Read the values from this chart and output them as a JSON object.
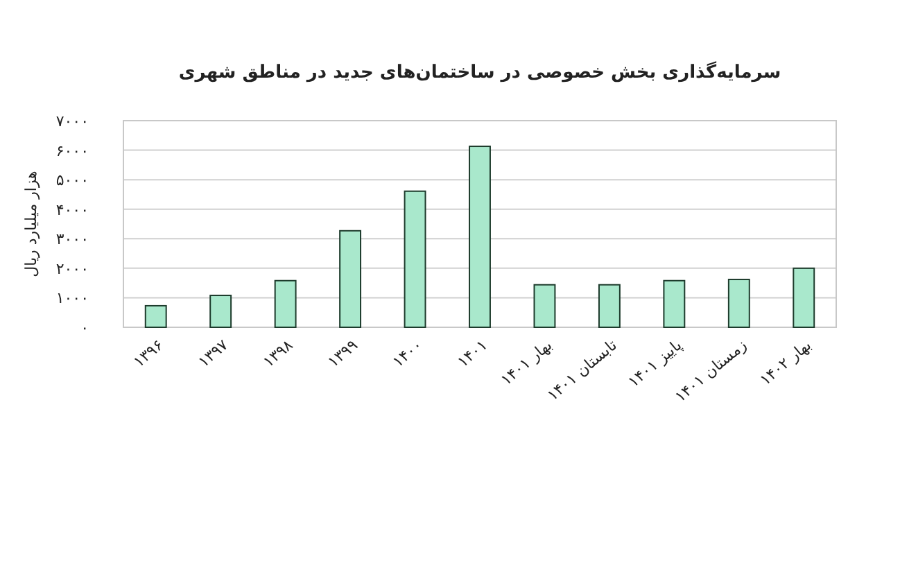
{
  "chart_data": {
    "type": "bar",
    "title": "سرمایه‌گذاری بخش خصوصی در ساختمان‌های جدید در مناطق شهری",
    "ylabel": "هزار میلیارد ریال",
    "categories": [
      "۱۳۹۶",
      "۱۳۹۷",
      "۱۳۹۸",
      "۱۳۹۹",
      "۱۴۰۰",
      "۱۴۰۱",
      "بهار ۱۴۰۱",
      "تابستان ۱۴۰۱",
      "پاییز ۱۴۰۱",
      "زمستان ۱۴۰۱",
      "بهار ۱۴۰۲"
    ],
    "values": [
      730,
      1080,
      1580,
      3270,
      4610,
      6130,
      1440,
      1440,
      1580,
      1620,
      2000
    ],
    "color": "#a9e8cc",
    "ylim": [
      0,
      7000
    ],
    "yticks": [
      {
        "value": 0,
        "label": "۰"
      },
      {
        "value": 1000,
        "label": "۱۰۰۰"
      },
      {
        "value": 2000,
        "label": "۲۰۰۰"
      },
      {
        "value": 3000,
        "label": "۳۰۰۰"
      },
      {
        "value": 4000,
        "label": "۴۰۰۰"
      },
      {
        "value": 5000,
        "label": "۵۰۰۰"
      },
      {
        "value": 6000,
        "label": "۶۰۰۰"
      },
      {
        "value": 7000,
        "label": "۷۰۰۰"
      }
    ],
    "grid": "y"
  }
}
